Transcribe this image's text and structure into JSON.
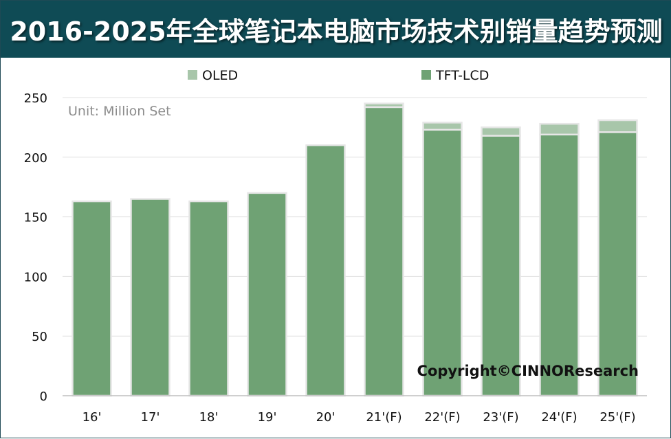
{
  "title": "2016-2025年全球笔记本电脑市场技术别销量趋势预测",
  "colors": {
    "header_bg": "#0f4b55",
    "tft_lcd": "#6fa274",
    "oled": "#a8c6aa",
    "bar_edge": "#e6e6e6",
    "grid": "#e0e0e0"
  },
  "chart_data": {
    "type": "bar",
    "stacked": true,
    "title": "2016-2025年全球笔记本电脑市场技术别销量趋势预测",
    "unit_label": "Unit: Million Set",
    "categories": [
      "16'",
      "17'",
      "18'",
      "19'",
      "20'",
      "21'(F)",
      "22'(F)",
      "23'(F)",
      "24'(F)",
      "25'(F)"
    ],
    "series": [
      {
        "name": "TFT-LCD",
        "color": "#6fa274",
        "values": [
          163,
          165,
          163,
          170,
          210,
          242,
          223,
          218,
          219,
          221
        ]
      },
      {
        "name": "OLED",
        "color": "#a8c6aa",
        "values": [
          0,
          0,
          0,
          0,
          0,
          3,
          6,
          7,
          9,
          10
        ]
      }
    ],
    "ylim": [
      0,
      250
    ],
    "yticks": [
      0,
      50,
      100,
      150,
      200,
      250
    ],
    "grid": true,
    "legend_position": "top",
    "legend": [
      {
        "name": "OLED",
        "color": "#a8c6aa"
      },
      {
        "name": "TFT-LCD",
        "color": "#6fa274"
      }
    ],
    "annotation": "Copyright©CINNOResearch"
  }
}
